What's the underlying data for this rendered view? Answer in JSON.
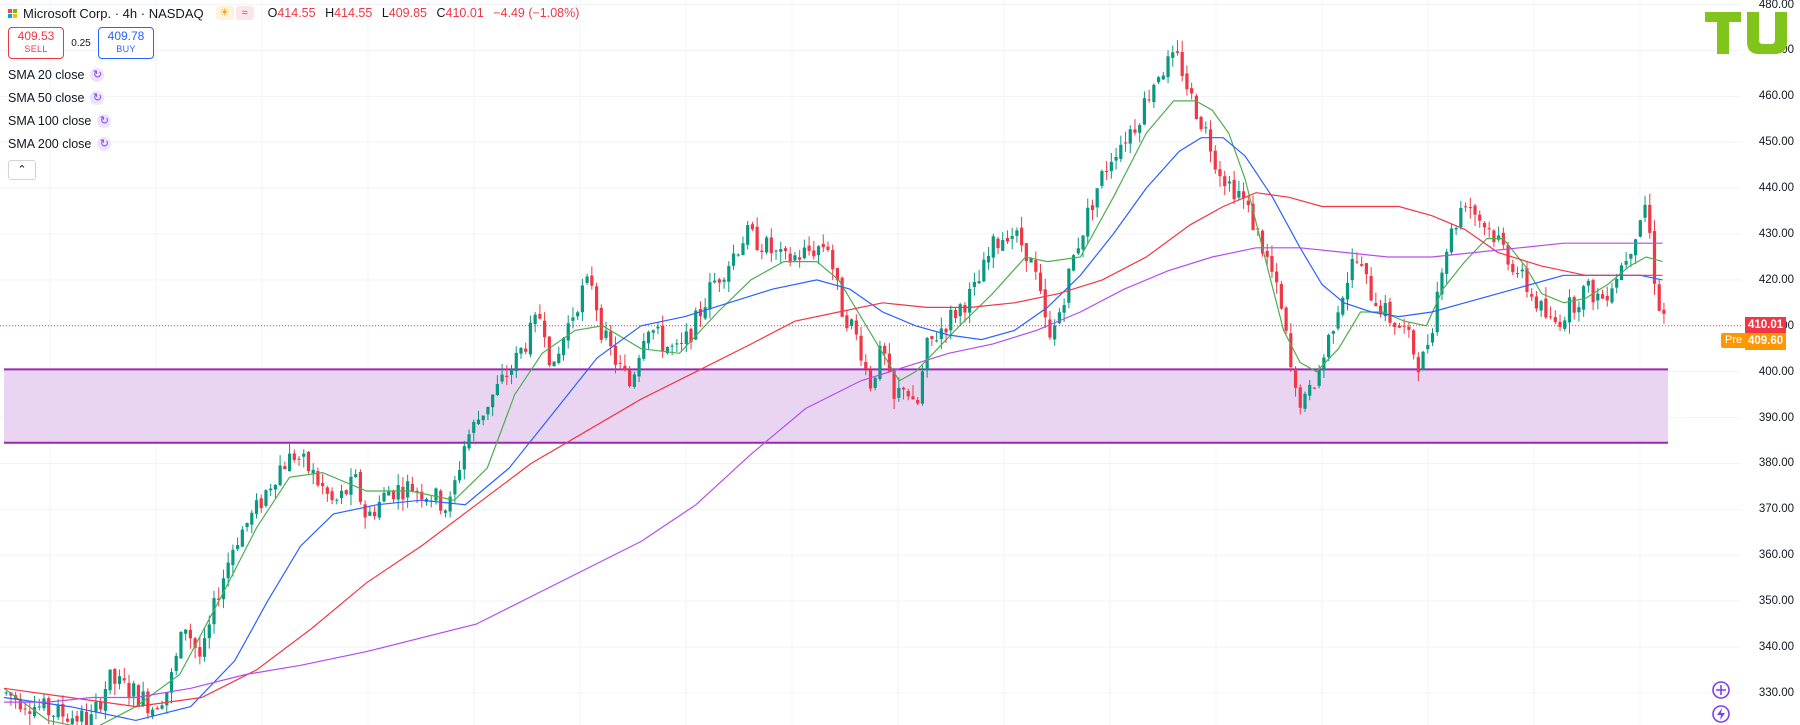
{
  "header": {
    "title": "Microsoft Corp. · 4h · NASDAQ",
    "ohlc_labels": [
      "O",
      "H",
      "L",
      "C"
    ],
    "ohlc_values": [
      "414.55",
      "414.55",
      "409.85",
      "410.01"
    ],
    "change": "−4.49 (−1.08%)",
    "market_icons": [
      "sun-icon",
      "waves-icon"
    ]
  },
  "trade": {
    "sell_price": "409.53",
    "sell_label": "SELL",
    "spread": "0.25",
    "buy_price": "409.78",
    "buy_label": "BUY"
  },
  "indicators": [
    {
      "label": "SMA 20 close",
      "color": "#4caf50"
    },
    {
      "label": "SMA 50 close",
      "color": "#2962ff"
    },
    {
      "label": "SMA 100 close",
      "color": "#f23645"
    },
    {
      "label": "SMA 200 close",
      "color": "#b24df2"
    }
  ],
  "collapse_icon": "chevron-up-icon",
  "price_axis": {
    "last_price": "410.01",
    "pre_label": "Pre",
    "pre_price": "409.60"
  },
  "logo": {
    "text": "TU",
    "color": "#80c41c"
  },
  "side_icons": [
    "crosshair-plus-icon",
    "lightning-icon"
  ],
  "chart_data": {
    "type": "candlestick",
    "title": "Microsoft Corp. · 4h · NASDAQ",
    "ylim": [
      323,
      481
    ],
    "y_ticks": [
      330,
      340,
      350,
      360,
      370,
      380,
      390,
      400,
      410,
      420,
      430,
      440,
      450,
      460,
      470,
      480
    ],
    "grid": true,
    "colors": {
      "up": "#089981",
      "down": "#f23645",
      "grid": "#f0f3fa",
      "zone_fill": "#e9d5f1",
      "zone_line": "#9c27b0",
      "last_price_line": "#f23645"
    },
    "support_zone": {
      "upper": 400.5,
      "lower": 384.5
    },
    "last_price": 410.01,
    "premarket_price": 409.6,
    "price_path": [
      [
        0,
        330
      ],
      [
        40,
        326
      ],
      [
        80,
        324
      ],
      [
        95,
        333
      ],
      [
        120,
        330
      ],
      [
        135,
        327
      ],
      [
        150,
        331
      ],
      [
        165,
        345
      ],
      [
        180,
        337
      ],
      [
        195,
        352
      ],
      [
        210,
        363
      ],
      [
        230,
        370
      ],
      [
        250,
        379
      ],
      [
        265,
        382
      ],
      [
        280,
        378
      ],
      [
        300,
        371
      ],
      [
        320,
        376
      ],
      [
        330,
        368
      ],
      [
        350,
        374
      ],
      [
        370,
        375
      ],
      [
        390,
        373
      ],
      [
        405,
        370
      ],
      [
        420,
        385
      ],
      [
        440,
        393
      ],
      [
        465,
        402
      ],
      [
        490,
        413
      ],
      [
        500,
        399
      ],
      [
        510,
        408
      ],
      [
        525,
        417
      ],
      [
        535,
        420
      ],
      [
        545,
        408
      ],
      [
        560,
        401
      ],
      [
        570,
        397
      ],
      [
        585,
        411
      ],
      [
        600,
        406
      ],
      [
        615,
        404
      ],
      [
        630,
        411
      ],
      [
        645,
        419
      ],
      [
        660,
        424
      ],
      [
        675,
        430
      ],
      [
        690,
        428
      ],
      [
        710,
        424
      ],
      [
        730,
        426
      ],
      [
        750,
        428
      ],
      [
        762,
        414
      ],
      [
        772,
        410
      ],
      [
        780,
        405
      ],
      [
        788,
        397
      ],
      [
        800,
        405
      ],
      [
        810,
        393
      ],
      [
        820,
        398
      ],
      [
        830,
        390
      ],
      [
        840,
        405
      ],
      [
        855,
        410
      ],
      [
        870,
        414
      ],
      [
        885,
        418
      ],
      [
        900,
        427
      ],
      [
        915,
        431
      ],
      [
        930,
        427
      ],
      [
        940,
        420
      ],
      [
        952,
        406
      ],
      [
        962,
        414
      ],
      [
        975,
        426
      ],
      [
        995,
        440
      ],
      [
        1010,
        448
      ],
      [
        1030,
        454
      ],
      [
        1050,
        465
      ],
      [
        1060,
        467
      ],
      [
        1070,
        468
      ],
      [
        1080,
        460
      ],
      [
        1095,
        452
      ],
      [
        1105,
        445
      ],
      [
        1115,
        441
      ],
      [
        1125,
        439
      ],
      [
        1140,
        431
      ],
      [
        1155,
        421
      ],
      [
        1165,
        411
      ],
      [
        1175,
        395
      ],
      [
        1185,
        393
      ],
      [
        1200,
        402
      ],
      [
        1215,
        415
      ],
      [
        1230,
        425
      ],
      [
        1245,
        417
      ],
      [
        1260,
        412
      ],
      [
        1275,
        409
      ],
      [
        1290,
        401
      ],
      [
        1300,
        410
      ],
      [
        1310,
        425
      ],
      [
        1330,
        438
      ],
      [
        1345,
        433
      ],
      [
        1360,
        429
      ],
      [
        1380,
        421
      ],
      [
        1395,
        415
      ],
      [
        1410,
        410
      ],
      [
        1425,
        414
      ],
      [
        1440,
        418
      ],
      [
        1455,
        416
      ],
      [
        1470,
        422
      ],
      [
        1480,
        427
      ],
      [
        1490,
        434
      ],
      [
        1495,
        437
      ],
      [
        1505,
        416
      ],
      [
        1515,
        410
      ]
    ],
    "series": [
      {
        "name": "SMA 20 close",
        "color": "#4caf50",
        "points": [
          [
            0,
            331
          ],
          [
            40,
            324
          ],
          [
            80,
            322
          ],
          [
            120,
            327
          ],
          [
            160,
            334
          ],
          [
            200,
            352
          ],
          [
            230,
            366
          ],
          [
            260,
            377
          ],
          [
            290,
            378
          ],
          [
            330,
            374
          ],
          [
            370,
            374
          ],
          [
            410,
            372
          ],
          [
            440,
            379
          ],
          [
            465,
            395
          ],
          [
            490,
            404
          ],
          [
            520,
            409
          ],
          [
            545,
            410
          ],
          [
            580,
            405
          ],
          [
            615,
            404
          ],
          [
            650,
            413
          ],
          [
            680,
            420
          ],
          [
            710,
            424
          ],
          [
            740,
            424
          ],
          [
            760,
            420
          ],
          [
            780,
            412
          ],
          [
            800,
            404
          ],
          [
            815,
            398
          ],
          [
            830,
            400
          ],
          [
            850,
            405
          ],
          [
            870,
            410
          ],
          [
            900,
            417
          ],
          [
            930,
            425
          ],
          [
            950,
            424
          ],
          [
            980,
            425
          ],
          [
            1010,
            438
          ],
          [
            1040,
            452
          ],
          [
            1065,
            459
          ],
          [
            1085,
            459
          ],
          [
            1100,
            457
          ],
          [
            1115,
            452
          ],
          [
            1130,
            442
          ],
          [
            1150,
            423
          ],
          [
            1165,
            409
          ],
          [
            1180,
            402
          ],
          [
            1195,
            400
          ],
          [
            1215,
            405
          ],
          [
            1235,
            413
          ],
          [
            1255,
            413
          ],
          [
            1275,
            411
          ],
          [
            1295,
            410
          ],
          [
            1310,
            418
          ],
          [
            1330,
            424
          ],
          [
            1350,
            429
          ],
          [
            1365,
            429
          ],
          [
            1385,
            423
          ],
          [
            1400,
            417
          ],
          [
            1420,
            415
          ],
          [
            1440,
            416
          ],
          [
            1460,
            419
          ],
          [
            1480,
            423
          ],
          [
            1495,
            425
          ],
          [
            1510,
            424
          ]
        ]
      },
      {
        "name": "SMA 50 close",
        "color": "#2962ff",
        "points": [
          [
            0,
            329
          ],
          [
            60,
            327
          ],
          [
            120,
            324
          ],
          [
            170,
            327
          ],
          [
            210,
            337
          ],
          [
            240,
            350
          ],
          [
            270,
            362
          ],
          [
            300,
            369
          ],
          [
            340,
            371
          ],
          [
            380,
            372
          ],
          [
            420,
            371
          ],
          [
            460,
            379
          ],
          [
            500,
            391
          ],
          [
            540,
            403
          ],
          [
            580,
            410
          ],
          [
            620,
            412
          ],
          [
            660,
            415
          ],
          [
            700,
            418
          ],
          [
            740,
            420
          ],
          [
            770,
            418
          ],
          [
            800,
            413
          ],
          [
            830,
            410
          ],
          [
            860,
            408
          ],
          [
            890,
            407
          ],
          [
            920,
            409
          ],
          [
            950,
            414
          ],
          [
            980,
            421
          ],
          [
            1010,
            430
          ],
          [
            1040,
            440
          ],
          [
            1070,
            448
          ],
          [
            1090,
            451
          ],
          [
            1110,
            451
          ],
          [
            1130,
            447
          ],
          [
            1155,
            438
          ],
          [
            1180,
            427
          ],
          [
            1200,
            419
          ],
          [
            1220,
            415
          ],
          [
            1245,
            413
          ],
          [
            1270,
            412
          ],
          [
            1300,
            413
          ],
          [
            1330,
            415
          ],
          [
            1360,
            417
          ],
          [
            1390,
            419
          ],
          [
            1420,
            421
          ],
          [
            1445,
            421
          ],
          [
            1470,
            421
          ],
          [
            1490,
            421
          ],
          [
            1510,
            420
          ]
        ]
      },
      {
        "name": "SMA 100 close",
        "color": "#f23645",
        "points": [
          [
            0,
            331
          ],
          [
            60,
            329
          ],
          [
            120,
            327
          ],
          [
            180,
            329
          ],
          [
            230,
            335
          ],
          [
            280,
            344
          ],
          [
            330,
            354
          ],
          [
            380,
            362
          ],
          [
            430,
            371
          ],
          [
            480,
            380
          ],
          [
            530,
            387
          ],
          [
            580,
            394
          ],
          [
            630,
            400
          ],
          [
            680,
            406
          ],
          [
            720,
            411
          ],
          [
            760,
            413
          ],
          [
            800,
            415
          ],
          [
            840,
            414
          ],
          [
            880,
            414
          ],
          [
            920,
            415
          ],
          [
            960,
            417
          ],
          [
            1000,
            420
          ],
          [
            1040,
            425
          ],
          [
            1080,
            432
          ],
          [
            1110,
            436
          ],
          [
            1140,
            439
          ],
          [
            1170,
            438
          ],
          [
            1200,
            436
          ],
          [
            1240,
            436
          ],
          [
            1270,
            436
          ],
          [
            1300,
            434
          ],
          [
            1330,
            431
          ],
          [
            1360,
            426
          ],
          [
            1400,
            423
          ],
          [
            1440,
            421
          ],
          [
            1470,
            421
          ],
          [
            1490,
            421
          ],
          [
            1510,
            421
          ]
        ]
      },
      {
        "name": "SMA 200 close",
        "color": "#b24df2",
        "points": [
          [
            0,
            328
          ],
          [
            40,
            328
          ],
          [
            80,
            329
          ],
          [
            120,
            329
          ],
          [
            170,
            331
          ],
          [
            220,
            334
          ],
          [
            270,
            336
          ],
          [
            330,
            339
          ],
          [
            380,
            342
          ],
          [
            430,
            345
          ],
          [
            480,
            351
          ],
          [
            530,
            357
          ],
          [
            580,
            363
          ],
          [
            630,
            371
          ],
          [
            680,
            382
          ],
          [
            730,
            392
          ],
          [
            780,
            398
          ],
          [
            820,
            401
          ],
          [
            860,
            404
          ],
          [
            900,
            406
          ],
          [
            940,
            409
          ],
          [
            980,
            413
          ],
          [
            1020,
            418
          ],
          [
            1060,
            422
          ],
          [
            1100,
            425
          ],
          [
            1140,
            427
          ],
          [
            1180,
            427
          ],
          [
            1220,
            426
          ],
          [
            1260,
            425
          ],
          [
            1300,
            425
          ],
          [
            1340,
            426
          ],
          [
            1380,
            427
          ],
          [
            1420,
            428
          ],
          [
            1450,
            428
          ],
          [
            1480,
            428
          ],
          [
            1510,
            428
          ]
        ]
      }
    ]
  }
}
